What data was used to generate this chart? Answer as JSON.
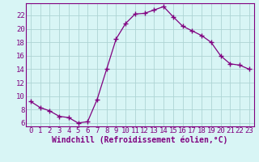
{
  "x": [
    0,
    1,
    2,
    3,
    4,
    5,
    6,
    7,
    8,
    9,
    10,
    11,
    12,
    13,
    14,
    15,
    16,
    17,
    18,
    19,
    20,
    21,
    22,
    23
  ],
  "y": [
    9.2,
    8.3,
    7.8,
    7.0,
    6.8,
    6.0,
    6.2,
    9.5,
    14.0,
    18.5,
    20.8,
    22.2,
    22.3,
    22.8,
    23.3,
    21.8,
    20.4,
    19.7,
    19.0,
    18.0,
    16.0,
    14.8,
    14.6,
    14.0
  ],
  "line_color": "#800080",
  "marker": "+",
  "marker_size": 4,
  "xlabel": "Windchill (Refroidissement éolien,°C)",
  "ylabel": "",
  "title": "",
  "xlim": [
    -0.5,
    23.5
  ],
  "ylim": [
    5.5,
    23.8
  ],
  "yticks": [
    6,
    8,
    10,
    12,
    14,
    16,
    18,
    20,
    22
  ],
  "xticks": [
    0,
    1,
    2,
    3,
    4,
    5,
    6,
    7,
    8,
    9,
    10,
    11,
    12,
    13,
    14,
    15,
    16,
    17,
    18,
    19,
    20,
    21,
    22,
    23
  ],
  "bg_color": "#d8f5f5",
  "grid_color": "#aed4d4",
  "text_color": "#800080",
  "font_size": 6.5,
  "xlabel_fontsize": 7,
  "linewidth": 0.9,
  "markeredgewidth": 1.0
}
